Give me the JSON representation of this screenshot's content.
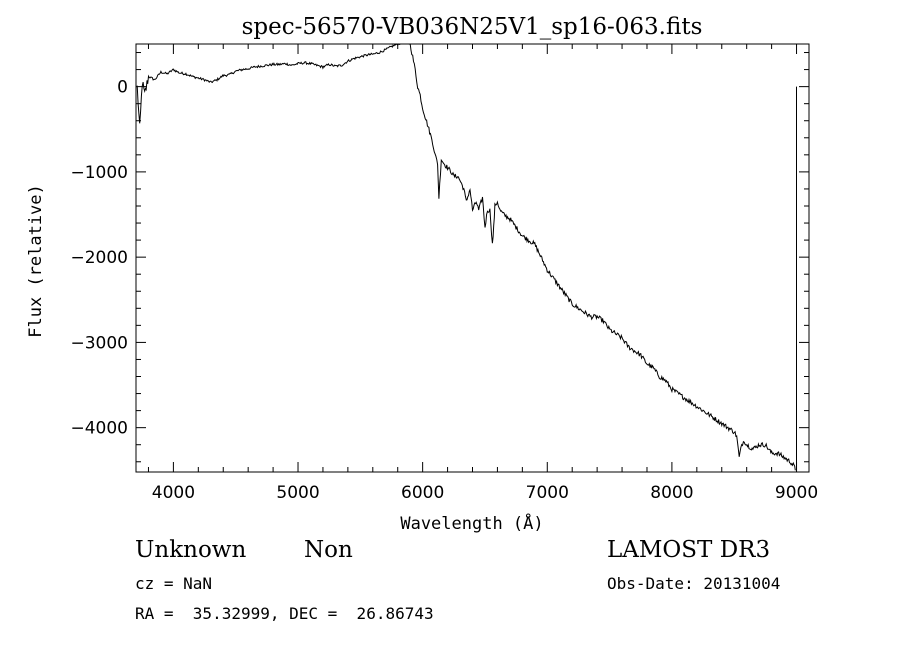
{
  "chart_data": {
    "type": "line",
    "title": "spec-56570-VB036N25V1_sp16-063.fits",
    "xlabel": "Wavelength (Å)",
    "ylabel": "Flux (relative)",
    "xlim": [
      3700,
      9100
    ],
    "ylim": [
      -4520,
      500
    ],
    "xticks": [
      4000,
      5000,
      6000,
      7000,
      8000,
      9000
    ],
    "xtick_labels": [
      "4000",
      "5000",
      "6000",
      "7000",
      "8000",
      "9000"
    ],
    "yticks": [
      0,
      -1000,
      -2000,
      -3000,
      -4000
    ],
    "ytick_labels": [
      "0",
      "−1000",
      "−2000",
      "−3000",
      "−4000"
    ],
    "grid": false,
    "legend": "none",
    "color": "#000000",
    "series": [
      {
        "x": [
          3710,
          3730,
          3750,
          3770,
          3800,
          3850,
          3900,
          3950,
          4000,
          4050,
          4100,
          4150,
          4200,
          4250,
          4300,
          4350,
          4400,
          4450,
          4500,
          4550,
          4600,
          4650,
          4700,
          4750,
          4800,
          4850,
          4900,
          4950,
          5000,
          5050,
          5100,
          5150,
          5200,
          5250,
          5300,
          5350,
          5400,
          5450,
          5500,
          5550,
          5600,
          5650,
          5700,
          5750,
          5800,
          5850,
          5880,
          5900,
          5920,
          5940,
          5960,
          5980,
          6000,
          6020,
          6050,
          6080,
          6100,
          6120,
          6130,
          6150,
          6170,
          6200,
          6230,
          6250,
          6280,
          6300,
          6330,
          6350,
          6380,
          6400,
          6430,
          6450,
          6480,
          6500,
          6520,
          6540,
          6560,
          6570,
          6580,
          6600,
          6620,
          6650,
          6700,
          6750,
          6800,
          6850,
          6900,
          6950,
          7000,
          7050,
          7100,
          7150,
          7200,
          7250,
          7300,
          7350,
          7400,
          7450,
          7500,
          7550,
          7600,
          7650,
          7700,
          7750,
          7800,
          7850,
          7900,
          7950,
          8000,
          8050,
          8100,
          8150,
          8200,
          8250,
          8300,
          8350,
          8400,
          8450,
          8500,
          8520,
          8540,
          8560,
          8580,
          8600,
          8650,
          8700,
          8750,
          8800,
          8850,
          8900,
          8950,
          8980,
          8990
        ],
        "y": [
          -10,
          -500,
          50,
          -100,
          120,
          80,
          170,
          150,
          200,
          160,
          150,
          120,
          100,
          80,
          50,
          80,
          130,
          140,
          180,
          200,
          210,
          230,
          240,
          250,
          260,
          260,
          270,
          250,
          270,
          280,
          270,
          250,
          230,
          260,
          240,
          250,
          300,
          330,
          350,
          370,
          380,
          400,
          430,
          470,
          500,
          520,
          520,
          500,
          350,
          200,
          0,
          -100,
          -250,
          -350,
          -500,
          -650,
          -800,
          -900,
          -1300,
          -850,
          -900,
          -950,
          -1000,
          -1050,
          -1050,
          -1100,
          -1200,
          -1350,
          -1200,
          -1450,
          -1350,
          -1450,
          -1300,
          -1650,
          -1450,
          -1450,
          -1850,
          -1650,
          -1400,
          -1350,
          -1450,
          -1500,
          -1550,
          -1650,
          -1750,
          -1800,
          -1850,
          -2000,
          -2150,
          -2250,
          -2350,
          -2450,
          -2550,
          -2600,
          -2650,
          -2700,
          -2700,
          -2750,
          -2850,
          -2900,
          -2950,
          -3050,
          -3100,
          -3150,
          -3250,
          -3300,
          -3400,
          -3450,
          -3550,
          -3600,
          -3650,
          -3700,
          -3750,
          -3800,
          -3850,
          -3900,
          -3950,
          -4000,
          -4050,
          -4100,
          -4350,
          -4200,
          -4150,
          -4200,
          -4250,
          -4200,
          -4200,
          -4300,
          -4300,
          -4350,
          -4400,
          -4450,
          -4500
        ]
      }
    ]
  },
  "info": {
    "object_class": "Unknown",
    "object_subclass": "Non",
    "survey": "LAMOST DR3",
    "redshift": "cz = NaN",
    "obs_date": "Obs-Date: 20131004",
    "coords": "RA =  35.32999, DEC =  26.86743"
  }
}
